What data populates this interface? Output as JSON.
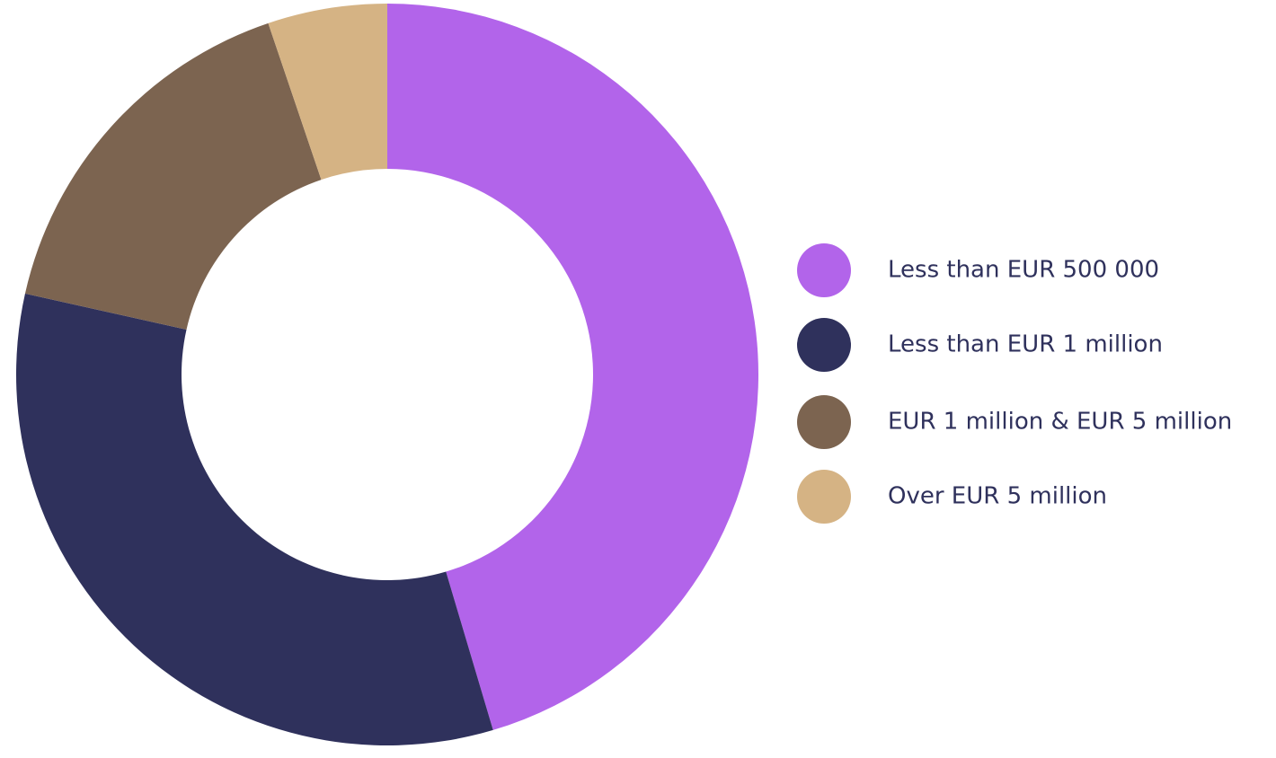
{
  "chart_data": {
    "type": "donut",
    "categories": [
      "Less than EUR 500 000",
      "Less than EUR 1 million",
      "EUR 1 million & EUR 5 million",
      "Over EUR 5 million"
    ],
    "values": [
      45.4,
      33.1,
      16.3,
      5.2
    ],
    "colors": [
      "#b264ea",
      "#2f315c",
      "#7c6450",
      "#d5b384"
    ],
    "legend": "right"
  }
}
